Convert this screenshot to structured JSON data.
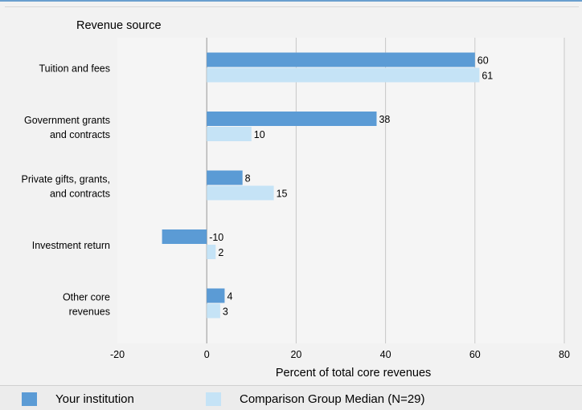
{
  "chart_data": {
    "type": "bar",
    "orientation": "horizontal",
    "category_axis_title": "Revenue source",
    "categories": [
      [
        "Tuition and fees"
      ],
      [
        "Government grants",
        "and contracts"
      ],
      [
        "Private gifts, grants,",
        "and contracts"
      ],
      [
        "Investment return"
      ],
      [
        "Other core",
        "revenues"
      ]
    ],
    "series": [
      {
        "name": "Your institution",
        "color": "#5b9bd5",
        "values": [
          60,
          38,
          8,
          -10,
          4
        ]
      },
      {
        "name": "Comparison Group Median (N=29)",
        "color": "#c5e3f6",
        "values": [
          61,
          10,
          15,
          2,
          3
        ]
      }
    ],
    "xlabel": "Percent of total core revenues",
    "xlim": [
      -20,
      80
    ],
    "xticks": [
      -20,
      0,
      20,
      40,
      60,
      80
    ],
    "grid": true,
    "legend_position": "bottom"
  }
}
